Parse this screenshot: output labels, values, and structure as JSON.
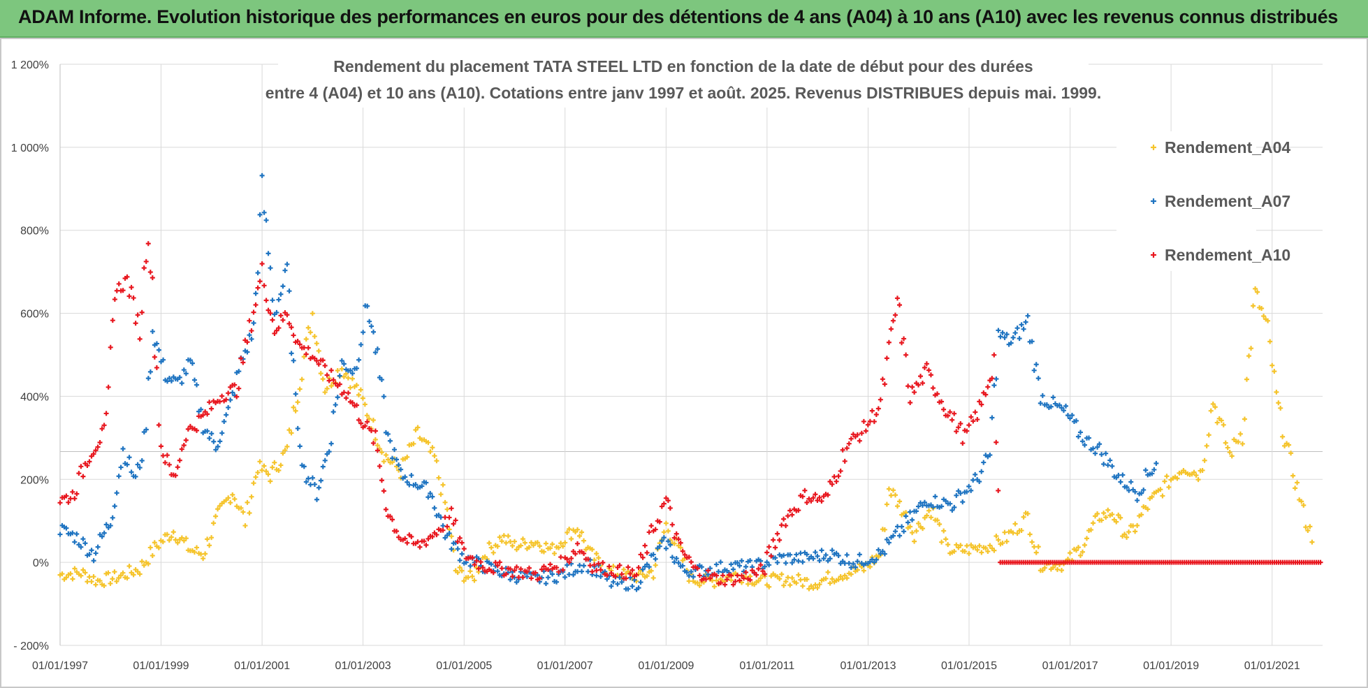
{
  "banner": {
    "text": "ADAM Informe. Evolution historique des performances en euros pour des détentions de 4 ans (A04) à 10 ans (A10) avec les revenus connus distribués",
    "color": "#7dc67e"
  },
  "chart_data": {
    "type": "scatter",
    "title_line1": "Rendement du placement TATA STEEL LTD en fonction de la date de début pour des durées",
    "title_line2": "entre 4 (A04) et 10 ans (A10).  Cotations entre janv 1997 et août. 2025. Revenus DISTRIBUES depuis mai. 1999.",
    "x_ticks": [
      "01/01/1997",
      "01/01/1999",
      "01/01/2001",
      "01/01/2003",
      "01/01/2005",
      "01/01/2007",
      "01/01/2009",
      "01/01/2011",
      "01/01/2013",
      "01/01/2015",
      "01/01/2017",
      "01/01/2019",
      "01/01/2021"
    ],
    "xlim": [
      "1997-01-01",
      "2022-01-01"
    ],
    "y_ticks": [
      "- 200%",
      "0%",
      "200%",
      "400%",
      "600%",
      "800%",
      "1 000%",
      "1 200%"
    ],
    "ylim": [
      -200,
      1200
    ],
    "grid": true,
    "legend_position": "top-right",
    "marker": "+",
    "series": [
      {
        "name": "Rendement_A04",
        "color": "#f5c42c",
        "points": [
          [
            "1997-01-01",
            -30
          ],
          [
            "1997-06-01",
            -25
          ],
          [
            "1997-10-01",
            -45
          ],
          [
            "1998-03-01",
            -35
          ],
          [
            "1998-08-01",
            -15
          ],
          [
            "1998-12-01",
            40
          ],
          [
            "1999-04-01",
            75
          ],
          [
            "1999-08-01",
            30
          ],
          [
            "1999-11-01",
            20
          ],
          [
            "2000-03-01",
            120
          ],
          [
            "2000-06-01",
            170
          ],
          [
            "2000-09-01",
            100
          ],
          [
            "2000-12-01",
            230
          ],
          [
            "2001-03-01",
            210
          ],
          [
            "2001-07-01",
            270
          ],
          [
            "2001-10-01",
            440
          ],
          [
            "2002-01-01",
            600
          ],
          [
            "2002-04-01",
            420
          ],
          [
            "2002-08-01",
            470
          ],
          [
            "2002-12-01",
            410
          ],
          [
            "2003-03-01",
            340
          ],
          [
            "2003-06-01",
            260
          ],
          [
            "2003-10-01",
            220
          ],
          [
            "2004-02-01",
            310
          ],
          [
            "2004-06-01",
            250
          ],
          [
            "2004-09-01",
            120
          ],
          [
            "2004-11-01",
            -20
          ],
          [
            "2005-03-01",
            -40
          ],
          [
            "2005-06-01",
            20
          ],
          [
            "2005-10-01",
            60
          ],
          [
            "2006-01-01",
            40
          ],
          [
            "2006-06-01",
            50
          ],
          [
            "2006-10-01",
            30
          ],
          [
            "2007-01-01",
            60
          ],
          [
            "2007-04-01",
            85
          ],
          [
            "2007-07-01",
            20
          ],
          [
            "2007-11-01",
            -20
          ],
          [
            "2008-03-01",
            -30
          ],
          [
            "2008-07-01",
            -35
          ],
          [
            "2008-10-01",
            -20
          ],
          [
            "2009-01-01",
            90
          ],
          [
            "2009-04-01",
            30
          ],
          [
            "2009-07-01",
            -40
          ],
          [
            "2009-12-01",
            -45
          ],
          [
            "2010-06-01",
            -30
          ],
          [
            "2010-12-01",
            -45
          ],
          [
            "2011-06-01",
            -40
          ],
          [
            "2011-12-01",
            -50
          ],
          [
            "2012-06-01",
            -30
          ],
          [
            "2012-12-01",
            -15
          ],
          [
            "2013-04-01",
            20
          ],
          [
            "2013-06-01",
            180
          ],
          [
            "2013-09-01",
            130
          ],
          [
            "2013-12-01",
            70
          ],
          [
            "2014-04-01",
            130
          ],
          [
            "2014-08-01",
            30
          ],
          [
            "2014-12-01",
            30
          ],
          [
            "2015-06-01",
            40
          ],
          [
            "2015-10-01",
            60
          ],
          [
            "2016-03-01",
            110
          ],
          [
            "2016-06-01",
            -5
          ],
          [
            "2016-12-01",
            -5
          ],
          [
            "2017-04-01",
            40
          ],
          [
            "2017-08-01",
            110
          ],
          [
            "2017-11-01",
            120
          ],
          [
            "2018-03-01",
            60
          ],
          [
            "2018-07-01",
            130
          ],
          [
            "2018-12-01",
            190
          ],
          [
            "2019-04-01",
            230
          ],
          [
            "2019-08-01",
            210
          ],
          [
            "2019-11-01",
            390
          ],
          [
            "2020-03-01",
            260
          ],
          [
            "2020-06-01",
            320
          ],
          [
            "2020-09-01",
            650
          ],
          [
            "2020-12-01",
            560
          ],
          [
            "2021-02-01",
            400
          ],
          [
            "2021-04-01",
            300
          ],
          [
            "2021-07-01",
            180
          ],
          [
            "2021-09-01",
            100
          ],
          [
            "2021-11-01",
            50
          ]
        ]
      },
      {
        "name": "Rendement_A07",
        "color": "#1f74c1",
        "points": [
          [
            "1997-01-01",
            80
          ],
          [
            "1997-05-01",
            60
          ],
          [
            "1997-09-01",
            20
          ],
          [
            "1998-01-01",
            100
          ],
          [
            "1998-04-01",
            270
          ],
          [
            "1998-07-01",
            200
          ],
          [
            "1998-09-01",
            280
          ],
          [
            "1998-11-01",
            560
          ],
          [
            "1999-02-01",
            450
          ],
          [
            "1999-05-01",
            430
          ],
          [
            "1999-08-01",
            480
          ],
          [
            "1999-11-01",
            330
          ],
          [
            "2000-02-01",
            280
          ],
          [
            "2000-05-01",
            360
          ],
          [
            "2000-08-01",
            480
          ],
          [
            "2000-11-01",
            560
          ],
          [
            "2001-01-01",
            900
          ],
          [
            "2001-04-01",
            600
          ],
          [
            "2001-07-01",
            700
          ],
          [
            "2001-09-01",
            380
          ],
          [
            "2001-11-01",
            220
          ],
          [
            "2002-02-01",
            170
          ],
          [
            "2002-05-01",
            280
          ],
          [
            "2002-08-01",
            480
          ],
          [
            "2002-11-01",
            460
          ],
          [
            "2003-02-01",
            620
          ],
          [
            "2003-04-01",
            520
          ],
          [
            "2003-07-01",
            300
          ],
          [
            "2003-10-01",
            210
          ],
          [
            "2004-02-01",
            190
          ],
          [
            "2004-05-01",
            170
          ],
          [
            "2004-09-01",
            60
          ],
          [
            "2005-01-01",
            10
          ],
          [
            "2005-06-01",
            -10
          ],
          [
            "2005-12-01",
            -30
          ],
          [
            "2006-06-01",
            -40
          ],
          [
            "2006-12-01",
            -30
          ],
          [
            "2007-06-01",
            0
          ],
          [
            "2007-12-01",
            -50
          ],
          [
            "2008-06-01",
            -50
          ],
          [
            "2008-10-01",
            10
          ],
          [
            "2009-01-01",
            50
          ],
          [
            "2009-05-01",
            -20
          ],
          [
            "2009-10-01",
            -20
          ],
          [
            "2010-04-01",
            -10
          ],
          [
            "2010-10-01",
            -10
          ],
          [
            "2011-04-01",
            10
          ],
          [
            "2011-10-01",
            10
          ],
          [
            "2012-04-01",
            20
          ],
          [
            "2012-10-01",
            0
          ],
          [
            "2013-04-01",
            20
          ],
          [
            "2013-09-01",
            80
          ],
          [
            "2014-03-01",
            150
          ],
          [
            "2014-09-01",
            140
          ],
          [
            "2015-03-01",
            200
          ],
          [
            "2015-06-01",
            260
          ],
          [
            "2015-08-01",
            550
          ],
          [
            "2015-11-01",
            530
          ],
          [
            "2016-03-01",
            580
          ],
          [
            "2016-06-01",
            400
          ],
          [
            "2016-12-01",
            360
          ],
          [
            "2017-04-01",
            300
          ],
          [
            "2017-08-01",
            270
          ],
          [
            "2018-01-01",
            200
          ],
          [
            "2018-05-01",
            170
          ],
          [
            "2018-10-01",
            250
          ]
        ]
      },
      {
        "name": "Rendement_A10",
        "color": "#e8171f",
        "points": [
          [
            "1997-01-01",
            150
          ],
          [
            "1997-04-01",
            160
          ],
          [
            "1997-08-01",
            260
          ],
          [
            "1997-12-01",
            320
          ],
          [
            "1998-02-01",
            650
          ],
          [
            "1998-05-01",
            680
          ],
          [
            "1998-08-01",
            560
          ],
          [
            "1998-10-01",
            820
          ],
          [
            "1999-01-01",
            280
          ],
          [
            "1999-04-01",
            200
          ],
          [
            "1999-07-01",
            310
          ],
          [
            "1999-11-01",
            350
          ],
          [
            "2000-03-01",
            400
          ],
          [
            "2000-07-01",
            420
          ],
          [
            "2000-10-01",
            560
          ],
          [
            "2001-01-01",
            700
          ],
          [
            "2001-04-01",
            560
          ],
          [
            "2001-07-01",
            600
          ],
          [
            "2001-10-01",
            520
          ],
          [
            "2002-01-01",
            500
          ],
          [
            "2002-05-01",
            450
          ],
          [
            "2002-09-01",
            410
          ],
          [
            "2003-01-01",
            340
          ],
          [
            "2003-04-01",
            290
          ],
          [
            "2003-07-01",
            120
          ],
          [
            "2003-10-01",
            60
          ],
          [
            "2004-02-01",
            40
          ],
          [
            "2004-06-01",
            70
          ],
          [
            "2004-10-01",
            110
          ],
          [
            "2005-01-01",
            20
          ],
          [
            "2005-06-01",
            -10
          ],
          [
            "2006-01-01",
            -20
          ],
          [
            "2006-06-01",
            -30
          ],
          [
            "2007-01-01",
            0
          ],
          [
            "2007-04-01",
            40
          ],
          [
            "2007-08-01",
            -10
          ],
          [
            "2008-01-01",
            -20
          ],
          [
            "2008-06-01",
            -30
          ],
          [
            "2008-10-01",
            80
          ],
          [
            "2009-01-01",
            150
          ],
          [
            "2009-04-01",
            40
          ],
          [
            "2009-08-01",
            -20
          ],
          [
            "2010-01-01",
            -40
          ],
          [
            "2010-06-01",
            -40
          ],
          [
            "2010-12-01",
            -20
          ],
          [
            "2011-05-01",
            100
          ],
          [
            "2011-10-01",
            160
          ],
          [
            "2012-03-01",
            150
          ],
          [
            "2012-08-01",
            280
          ],
          [
            "2012-12-01",
            320
          ],
          [
            "2013-04-01",
            380
          ],
          [
            "2013-08-01",
            630
          ],
          [
            "2013-11-01",
            400
          ],
          [
            "2014-03-01",
            460
          ],
          [
            "2014-07-01",
            380
          ],
          [
            "2014-12-01",
            300
          ],
          [
            "2015-04-01",
            380
          ],
          [
            "2015-07-01",
            480
          ],
          [
            "2015-08-15",
            0
          ],
          [
            "2022-01-01",
            0
          ]
        ]
      }
    ]
  }
}
